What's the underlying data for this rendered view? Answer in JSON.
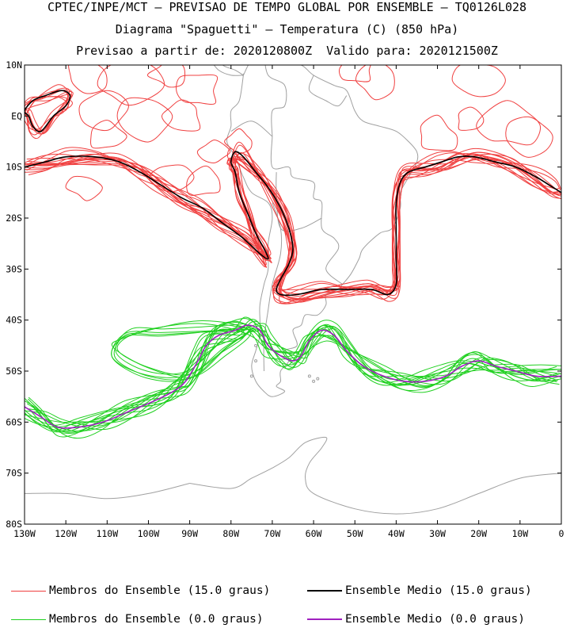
{
  "title": {
    "line1": "CPTEC/INPE/MCT – PREVISAO DE TEMPO GLOBAL POR ENSEMBLE – TQ0126L028",
    "line2": "Diagrama \"Spaguetti\" – Temperatura (C) (850 hPa)",
    "line3": "Previsao a partir de: 2020120800Z  Valido para: 2020121500Z"
  },
  "map": {
    "lon_range": [
      -130,
      0
    ],
    "lat_range": [
      -80,
      10
    ],
    "lat_labels": [
      "10N",
      "EQ",
      "10S",
      "20S",
      "30S",
      "40S",
      "50S",
      "60S",
      "70S",
      "80S"
    ],
    "lon_labels": [
      "130W",
      "120W",
      "110W",
      "100W",
      "90W",
      "80W",
      "70W",
      "60W",
      "50W",
      "40W",
      "30W",
      "20W",
      "10W",
      "0"
    ]
  },
  "colors": {
    "members_15": "#f04040",
    "mean_15": "#000000",
    "members_0": "#20d020",
    "mean_0": "#a020c0",
    "coast": "#a0a0a0"
  },
  "legend": {
    "members_15": "Membros do Ensemble (15.0 graus)",
    "mean_15": "Ensemble Medio (15.0 graus)",
    "members_0": "Membros do Ensemble (0.0 graus)",
    "mean_0": "Ensemble Medio (0.0 graus)"
  },
  "contours": {
    "mean_15_north": [
      [
        -130,
        -10
      ],
      [
        -125,
        -9
      ],
      [
        -120,
        -8
      ],
      [
        -113,
        -8
      ],
      [
        -107,
        -9
      ],
      [
        -102,
        -11
      ],
      [
        -98,
        -13
      ],
      [
        -92,
        -16
      ],
      [
        -87,
        -18
      ],
      [
        -82,
        -21
      ],
      [
        -77,
        -24
      ],
      [
        -73,
        -27
      ],
      [
        -71,
        -28
      ],
      [
        -72,
        -26
      ],
      [
        -74,
        -23
      ],
      [
        -76,
        -19
      ],
      [
        -78,
        -15
      ],
      [
        -79,
        -11
      ],
      [
        -80,
        -9
      ],
      [
        -79,
        -7
      ],
      [
        -77,
        -8
      ],
      [
        -74,
        -11
      ],
      [
        -71,
        -14
      ],
      [
        -68,
        -18
      ],
      [
        -66,
        -22
      ],
      [
        -65,
        -26
      ],
      [
        -66,
        -29
      ],
      [
        -68,
        -32
      ],
      [
        -69,
        -34
      ],
      [
        -68,
        -35
      ],
      [
        -64,
        -35
      ],
      [
        -58,
        -34
      ],
      [
        -52,
        -34
      ],
      [
        -46,
        -34
      ],
      [
        -42,
        -35
      ],
      [
        -40,
        -33
      ],
      [
        -40,
        -28
      ],
      [
        -40,
        -22
      ],
      [
        -40,
        -17
      ],
      [
        -39,
        -13
      ],
      [
        -37,
        -11
      ],
      [
        -33,
        -10
      ],
      [
        -29,
        -9
      ],
      [
        -25,
        -8
      ],
      [
        -21,
        -8
      ],
      [
        -16,
        -9
      ],
      [
        -11,
        -10
      ],
      [
        -6,
        -12
      ],
      [
        -2,
        -14
      ],
      [
        0,
        -15
      ]
    ],
    "mean_15_loop": [
      [
        -130,
        1
      ],
      [
        -128,
        3
      ],
      [
        -125,
        4
      ],
      [
        -121,
        5
      ],
      [
        -119,
        4
      ],
      [
        -120,
        2
      ],
      [
        -123,
        0
      ],
      [
        -126,
        -3
      ],
      [
        -128,
        -2
      ],
      [
        -129,
        0
      ]
    ],
    "mean_0": [
      [
        -130,
        -57
      ],
      [
        -126,
        -59
      ],
      [
        -122,
        -61
      ],
      [
        -117,
        -61
      ],
      [
        -111,
        -60
      ],
      [
        -105,
        -58
      ],
      [
        -99,
        -56
      ],
      [
        -94,
        -54
      ],
      [
        -91,
        -52
      ],
      [
        -88,
        -48
      ],
      [
        -86,
        -45
      ],
      [
        -83,
        -43
      ],
      [
        -79,
        -42
      ],
      [
        -76,
        -41
      ],
      [
        -73,
        -42
      ],
      [
        -71,
        -45
      ],
      [
        -68,
        -47
      ],
      [
        -65,
        -48
      ],
      [
        -63,
        -47
      ],
      [
        -61,
        -44
      ],
      [
        -58,
        -42
      ],
      [
        -55,
        -43
      ],
      [
        -52,
        -46
      ],
      [
        -48,
        -49
      ],
      [
        -43,
        -51
      ],
      [
        -38,
        -52
      ],
      [
        -33,
        -52
      ],
      [
        -28,
        -51
      ],
      [
        -24,
        -49
      ],
      [
        -20,
        -48
      ],
      [
        -16,
        -49
      ],
      [
        -11,
        -50
      ],
      [
        -6,
        -51
      ],
      [
        0,
        -51
      ]
    ]
  }
}
